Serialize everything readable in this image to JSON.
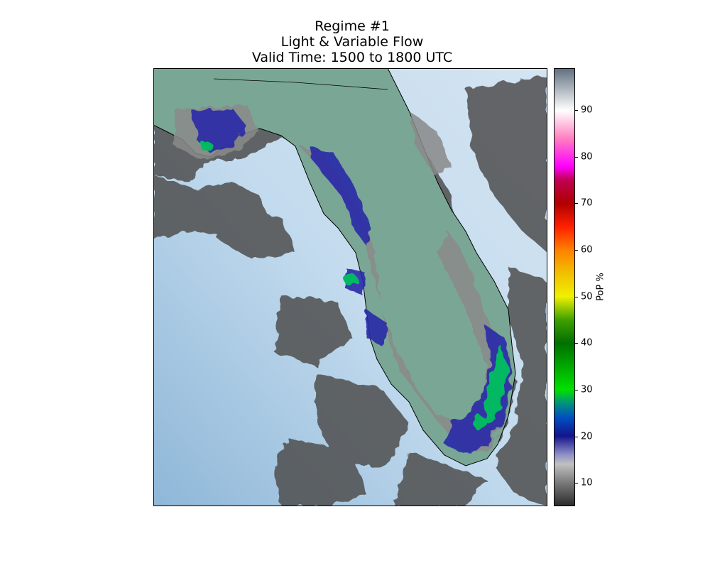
{
  "figure": {
    "title_lines": [
      "Regime #1",
      "Light & Variable Flow",
      "Valid Time: 1500 to 1800 UTC"
    ]
  },
  "colorbar": {
    "label": "PoP %",
    "min": 5,
    "max": 99,
    "ticks": [
      {
        "value": 10,
        "label": "10"
      },
      {
        "value": 20,
        "label": "20"
      },
      {
        "value": 30,
        "label": "30"
      },
      {
        "value": 40,
        "label": "40"
      },
      {
        "value": 50,
        "label": "50"
      },
      {
        "value": 60,
        "label": "60"
      },
      {
        "value": 70,
        "label": "70"
      },
      {
        "value": 80,
        "label": "80"
      },
      {
        "value": 90,
        "label": "90"
      }
    ]
  },
  "map": {
    "region": "Florida peninsula and panhandle",
    "ocean_color": "#a9c9e3",
    "land_color": "#7da894",
    "low_pop_color": "#606060",
    "max_pop_areas": [
      "Tampa Bay",
      "Southeast Florida coast",
      "Western panhandle"
    ]
  }
}
